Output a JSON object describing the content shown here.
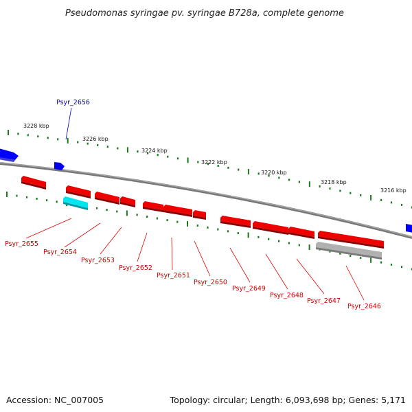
{
  "title": "Pseudomonas syringae pv. syringae B728a, complete genome",
  "footer": {
    "accession": "Accession: NC_007005",
    "summary": "Topology: circular; Length: 6,093,698 bp; Genes: 5,171"
  },
  "ruler": {
    "labels": [
      "3228 kbp",
      "3226 kbp",
      "3224 kbp",
      "3222 kbp",
      "3220 kbp",
      "3218 kbp",
      "3216 kbp"
    ]
  },
  "genes": [
    {
      "name": "Psyr_2655",
      "color": "#cc0000"
    },
    {
      "name": "Psyr_2654",
      "color": "#cc0000"
    },
    {
      "name": "Psyr_2653",
      "color": "#cc0000"
    },
    {
      "name": "Psyr_2652",
      "color": "#cc0000"
    },
    {
      "name": "Psyr_2651",
      "color": "#cc0000"
    },
    {
      "name": "Psyr_2650",
      "color": "#cc0000"
    },
    {
      "name": "Psyr_2649",
      "color": "#cc0000"
    },
    {
      "name": "Psyr_2648",
      "color": "#cc0000"
    },
    {
      "name": "Psyr_2647",
      "color": "#cc0000"
    },
    {
      "name": "Psyr_2646",
      "color": "#cc0000"
    },
    {
      "name": "Psyr_2656",
      "color": "#0000aa"
    }
  ],
  "colors": {
    "forward_strand": "#0000ff",
    "reverse_strand": "#ee0000",
    "highlight": "#00e5ee",
    "pseudo": "#b0b0b0",
    "backbone": "#888888",
    "ticks": "#1a7a1a"
  }
}
